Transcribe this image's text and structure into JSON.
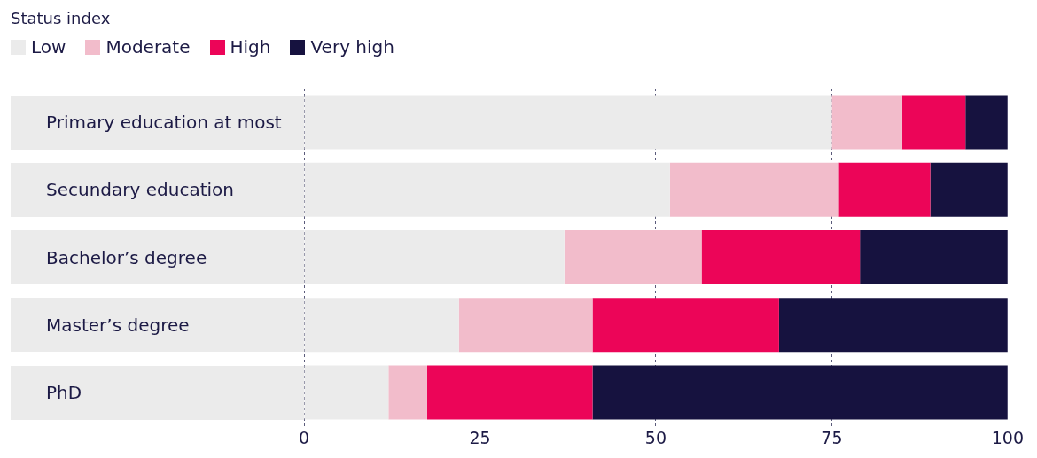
{
  "chart_data": {
    "type": "bar",
    "orientation": "horizontal",
    "stacked": true,
    "legend_title": "Status index",
    "legend": "top left",
    "categories": [
      "Primary education at most",
      "Secundary education",
      "Bachelor’s degree",
      "Master’s degree",
      "PhD"
    ],
    "series": [
      {
        "name": "Low",
        "color": "#ebebeb",
        "values": [
          75,
          52,
          37,
          22,
          12
        ]
      },
      {
        "name": "Moderate",
        "color": "#f2bccb",
        "values": [
          10,
          24,
          19.5,
          19,
          5.5
        ]
      },
      {
        "name": "High",
        "color": "#ec0558",
        "values": [
          9,
          13,
          22.5,
          26.5,
          23.5
        ]
      },
      {
        "name": "Very high",
        "color": "#16123f",
        "values": [
          6,
          11,
          21,
          32.5,
          59
        ]
      }
    ],
    "xlim": [
      0,
      100
    ],
    "xticks": [
      0,
      25,
      50,
      75,
      100
    ],
    "grid": "x"
  }
}
